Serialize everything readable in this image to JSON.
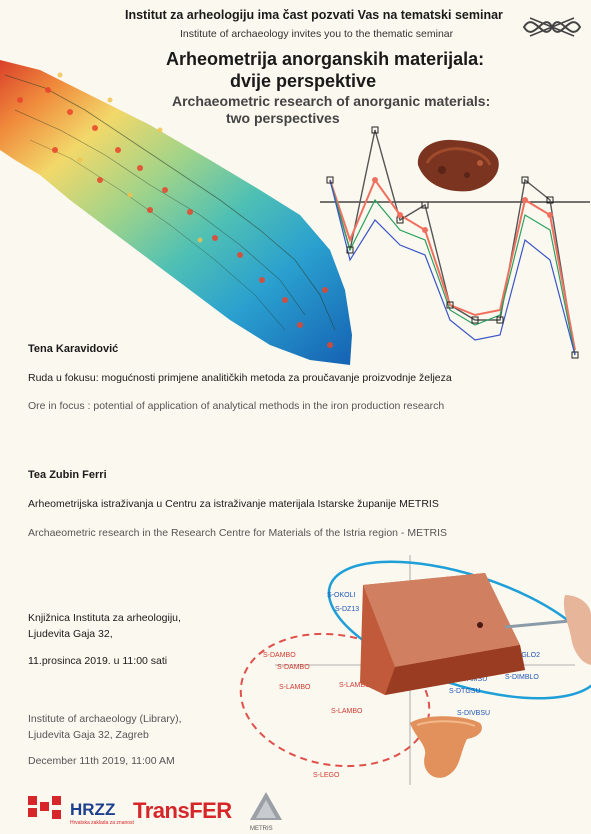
{
  "header": {
    "invite_hr": "Institut za arheologiju ima čast pozvati Vas na tematski seminar",
    "invite_en": "Institute of archaeology invites you to the thematic seminar",
    "title_hr_line1": "Arheometrija anorganskih materijala:",
    "title_hr_line2": "dvije perspektive",
    "title_en_line1": "Archaeometric research of anorganic materials:",
    "title_en_line2": "two perspectives"
  },
  "talks": [
    {
      "speaker": "Tena Karavidović",
      "title_hr": "Ruda u fokusu: mogućnosti primjene analitičkih metoda za proučavanje proizvodnje željeza",
      "title_en": "Ore in focus : potential of application of analytical methods in the  iron production research"
    },
    {
      "speaker": "Tea Zubin Ferri",
      "title_hr": "Arheometrijska istraživanja u Centru za istraživanje materijala Istarske županije METRIS",
      "title_en": "Archaeometric  research in the Research Centre for Materials of the Istria region - METRIS"
    }
  ],
  "venue": {
    "hr_line1": "Knjižnica Instituta za arheologiju,",
    "hr_line2": " Ljudevita Gaja 32,",
    "hr_date": "11.prosinca 2019. u 11:00 sati",
    "en_line1": "Institute of archaeology (Library),",
    "en_line2": "Ljudevita Gaja 32, Zagreb",
    "en_date": "December 11th 2019, 11:00 AM"
  },
  "plot_labels": {
    "blue": [
      "S-OKOLI",
      "S-DZ13",
      "S-DTGLO2",
      "S-DIMBLO",
      "S-DAMSU",
      "S-DTGSU",
      "S-DIVBSU"
    ],
    "red": [
      "S-DAMBO",
      "S-DAMBO",
      "S-LAMBO",
      "S-LAMBO",
      "S-LAMBO",
      "S-LEGO"
    ]
  },
  "logos": {
    "hrzz": "HRZZ",
    "hrzz_sub": "Hrvatska zaklada za znanost",
    "transfer": "TransFER",
    "metris": "METRIS"
  },
  "colors": {
    "background": "#fbf8ef",
    "hrzz_red": "#d7262a",
    "transfer_red": "#d7262a",
    "ellipse_blue": "#1e9fd8",
    "ellipse_red": "#e0504a"
  }
}
